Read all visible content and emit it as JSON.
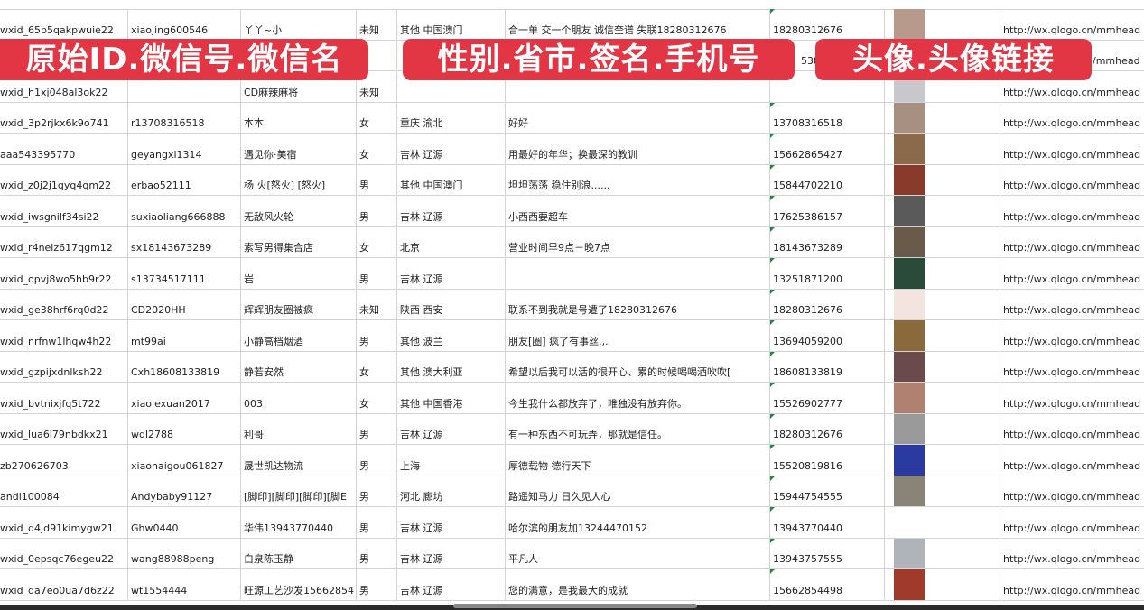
{
  "banners": [
    "原始ID.微信号.微信名",
    "性别.省市.签名.手机号",
    "头像.头像链接"
  ],
  "rows": [
    {
      "id": "wxid_65p5qakpwuie22",
      "wx": "xiaojing600546",
      "name": "丫丫~小",
      "gender": "未知",
      "region": "其他 中国澳门",
      "sign": "合一单 交一个朋友 诚信奎谱 失联18280312676",
      "phone": "18280312676",
      "avatar_color": "#b89a8c",
      "url": "http://wx.qlogo.cn/mmhead"
    },
    {
      "id": "",
      "wx": "",
      "name": "",
      "gender": "",
      "region": "",
      "sign": "",
      "phone": "5386",
      "avatar_color": "#5a6a9a",
      "url": "/mmhead"
    },
    {
      "id": "wxid_h1xj048al3ok22",
      "wx": "",
      "name": "CD麻辣麻将",
      "gender": "未知",
      "region": "",
      "sign": "",
      "phone": "",
      "avatar_color": "#c8c8cc",
      "url": "http://wx.qlogo.cn/mmhead"
    },
    {
      "id": "wxid_3p2rjkx6k9o741",
      "wx": "r13708316518",
      "name": "本本",
      "gender": "女",
      "region": "重庆 渝北",
      "sign": "好好",
      "phone": "13708316518",
      "avatar_color": "#a89080",
      "url": "http://wx.qlogo.cn/mmhead"
    },
    {
      "id": "aaa543395770",
      "wx": "geyangxi1314",
      "name": "遇见你·美宿",
      "gender": "女",
      "region": "吉林 辽源",
      "sign": "用最好的年华；换最深的教训",
      "phone": "15662865427",
      "avatar_color": "#8a6a4a",
      "url": "http://wx.qlogo.cn/mmhead"
    },
    {
      "id": "wxid_z0j2j1qyq4qm22",
      "wx": "erbao52111",
      "name": "杨 火[怒火] [怒火]",
      "gender": "男",
      "region": "其他 中国澳门",
      "sign": "坦坦荡荡 稳住别浪......",
      "phone": "15844702210",
      "avatar_color": "#8a3a2a",
      "url": "http://wx.qlogo.cn/mmhead"
    },
    {
      "id": "wxid_iwsgnilf34si22",
      "wx": "suxiaoliang666888",
      "name": "无敌风火轮",
      "gender": "男",
      "region": "吉林 辽源",
      "sign": "小西西要超车",
      "phone": "17625386157",
      "avatar_color": "#5a5a5a",
      "url": "http://wx.qlogo.cn/mmhead"
    },
    {
      "id": "wxid_r4nelz617qgm12",
      "wx": "sx18143673289",
      "name": "素写男得集合店",
      "gender": "女",
      "region": "北京",
      "sign": "营业时间早9点－晚7点",
      "phone": "18143673289",
      "avatar_color": "#6a5a4a",
      "url": "http://wx.qlogo.cn/mmhead"
    },
    {
      "id": "wxid_opvj8wo5hb9r22",
      "wx": "s13734517111",
      "name": "岩",
      "gender": "男",
      "region": "吉林 辽源",
      "sign": "",
      "phone": "13251871200",
      "avatar_color": "#2a4a3a",
      "url": "http://wx.qlogo.cn/mmhead"
    },
    {
      "id": "wxid_ge38hrf6rq0d22",
      "wx": "CD2020HH",
      "name": "辉辉朋友圈被疯",
      "gender": "未知",
      "region": "陕西 西安",
      "sign": "联系不到我就是号遭了18280312676",
      "phone": "18280312676",
      "avatar_color": "#f4e4e0",
      "url": "http://wx.qlogo.cn/mmhead"
    },
    {
      "id": "wxid_nrfnw1lhqw4h22",
      "wx": "mt99ai",
      "name": "小静高档烟酒",
      "gender": "男",
      "region": "其他 波兰",
      "sign": "朋友[圈] 疯了有事丝.,.",
      "phone": "13694059200",
      "avatar_color": "#8a6a3a",
      "url": "http://wx.qlogo.cn/mmhead"
    },
    {
      "id": "wxid_gzpijxdnlksh22",
      "wx": "Cxh18608133819",
      "name": "静若安然",
      "gender": "女",
      "region": "其他 澳大利亚",
      "sign": "希望以后我可以活的很开心、累的时候喝喝酒吹吹[",
      "phone": "18608133819",
      "avatar_color": "#6a4a4a",
      "url": "http://wx.qlogo.cn/mmhead"
    },
    {
      "id": "wxid_bvtnixjfq5t722",
      "wx": "xiaolexuan2017",
      "name": "003",
      "gender": "女",
      "region": "其他 中国香港",
      "sign": "今生我什么都放弃了，唯独没有放弃你。",
      "phone": "15526902777",
      "avatar_color": "#b08070",
      "url": "http://wx.qlogo.cn/mmhead"
    },
    {
      "id": "wxid_lua6l79nbdkx21",
      "wx": "wql2788",
      "name": "利哥",
      "gender": "男",
      "region": "吉林 辽源",
      "sign": "有一种东西不可玩弄，那就是信任。",
      "phone": "18280312676",
      "avatar_color": "#9a9a9a",
      "url": "http://wx.qlogo.cn/mmhead"
    },
    {
      "id": "zb270626703",
      "wx": "xiaonaigou061827",
      "name": "晟世凯达物流",
      "gender": "男",
      "region": "上海",
      "sign": "厚德载物 德行天下",
      "phone": "15520819816",
      "avatar_color": "#2a3aa0",
      "url": "http://wx.qlogo.cn/mmhead"
    },
    {
      "id": "andi100084",
      "wx": "Andybaby91127",
      "name": "[脚印][脚印][脚印][脚E",
      "gender": "男",
      "region": "河北 廊坊",
      "sign": "路遥知马力 日久见人心",
      "phone": "15944754555",
      "avatar_color": "#8a8478",
      "url": "http://wx.qlogo.cn/mmhead"
    },
    {
      "id": "wxid_q4jd91kimygw21",
      "wx": "Ghw0440",
      "name": "华伟13943770440",
      "gender": "男",
      "region": "吉林 辽源",
      "sign": "哈尔滨的朋友加13244470152",
      "phone": "13943770440",
      "avatar_color": "#ffffff",
      "url": "http://wx.qlogo.cn/mmhead"
    },
    {
      "id": "wxid_0epsqc76egeu22",
      "wx": "wang88988peng",
      "name": "白泉陈玉静",
      "gender": "男",
      "region": "吉林 辽源",
      "sign": "平凡人",
      "phone": "13943757555",
      "avatar_color": "#b0b4b8",
      "url": "http://wx.qlogo.cn/mmhead"
    },
    {
      "id": "wxid_da7eo0ua7d6z22",
      "wx": "wt1554444",
      "name": "旺源工艺沙发15662854",
      "gender": "男",
      "region": "吉林 辽源",
      "sign": "您的满意，是我最大的成就",
      "phone": "15662854498",
      "avatar_color": "#a03a2a",
      "url": "http://wx.qlogo.cn/mmhead"
    }
  ]
}
